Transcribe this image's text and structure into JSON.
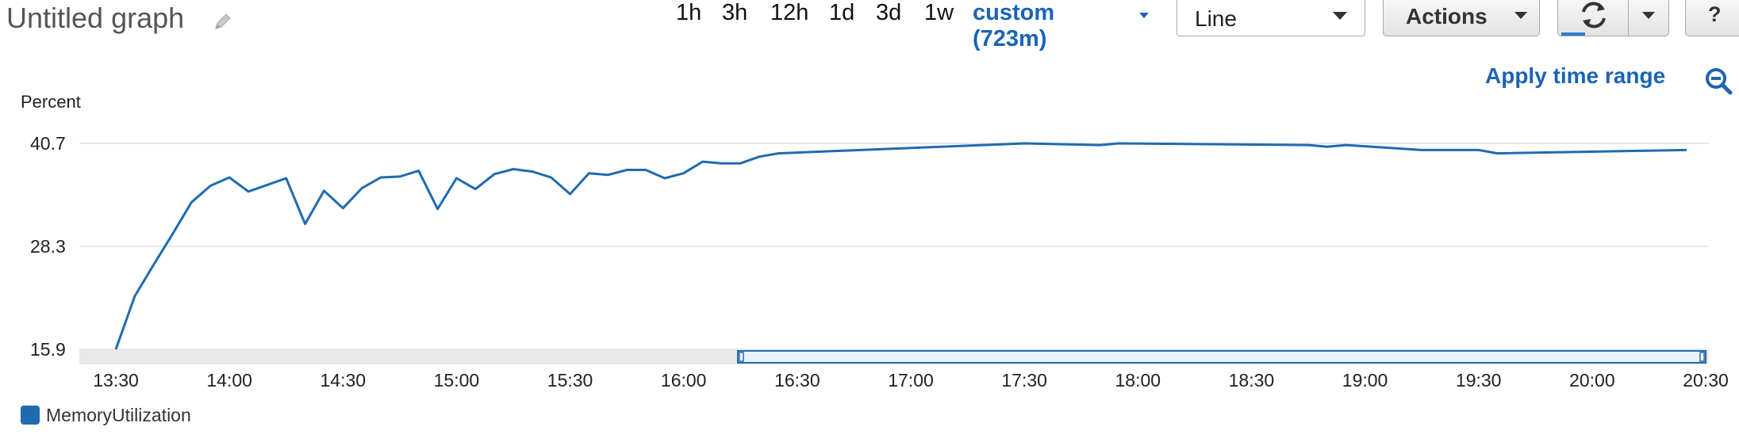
{
  "header": {
    "title": "Untitled graph",
    "time_ranges": [
      "1h",
      "3h",
      "12h",
      "1d",
      "3d",
      "1w"
    ],
    "custom_range": "custom (723m)",
    "view_type": "Line",
    "actions_label": "Actions",
    "apply_time_range": "Apply time range",
    "help_symbol": "?"
  },
  "chart_data": {
    "type": "line",
    "ylabel": "Percent",
    "yticks": [
      "15.9",
      "28.3",
      "40.7"
    ],
    "ylim": [
      15.9,
      40.7
    ],
    "xticks": [
      "13:30",
      "14:00",
      "14:30",
      "15:00",
      "15:30",
      "16:00",
      "16:30",
      "17:00",
      "17:30",
      "18:00",
      "18:30",
      "19:00",
      "19:30",
      "20:00",
      "20:30"
    ],
    "xlim": [
      "13:30",
      "20:30"
    ],
    "grid": true,
    "legend_position": "bottom-left",
    "series": [
      {
        "name": "MemoryUtilization",
        "color": "#1f6bb0",
        "x": [
          "13:30",
          "13:35",
          "13:40",
          "13:45",
          "13:50",
          "13:55",
          "14:00",
          "14:05",
          "14:10",
          "14:15",
          "14:20",
          "14:25",
          "14:30",
          "14:35",
          "14:40",
          "14:45",
          "14:50",
          "14:55",
          "15:00",
          "15:05",
          "15:10",
          "15:15",
          "15:20",
          "15:25",
          "15:30",
          "15:35",
          "15:40",
          "15:45",
          "15:50",
          "15:55",
          "16:00",
          "16:05",
          "16:10",
          "16:15",
          "16:20",
          "16:25",
          "17:30",
          "17:50",
          "17:55",
          "18:45",
          "18:50",
          "18:55",
          "19:15",
          "19:30",
          "19:35",
          "20:25"
        ],
        "values": [
          15.9,
          22.3,
          26.1,
          29.8,
          33.6,
          35.6,
          36.6,
          34.9,
          35.7,
          36.5,
          31.0,
          35.0,
          32.9,
          35.3,
          36.6,
          36.7,
          37.4,
          32.8,
          36.5,
          35.2,
          37.0,
          37.6,
          37.3,
          36.6,
          34.6,
          37.1,
          36.9,
          37.5,
          37.5,
          36.5,
          37.1,
          38.5,
          38.3,
          38.3,
          39.1,
          39.5,
          40.7,
          40.5,
          40.7,
          40.5,
          40.3,
          40.5,
          39.9,
          39.9,
          39.5,
          39.9
        ]
      }
    ]
  }
}
